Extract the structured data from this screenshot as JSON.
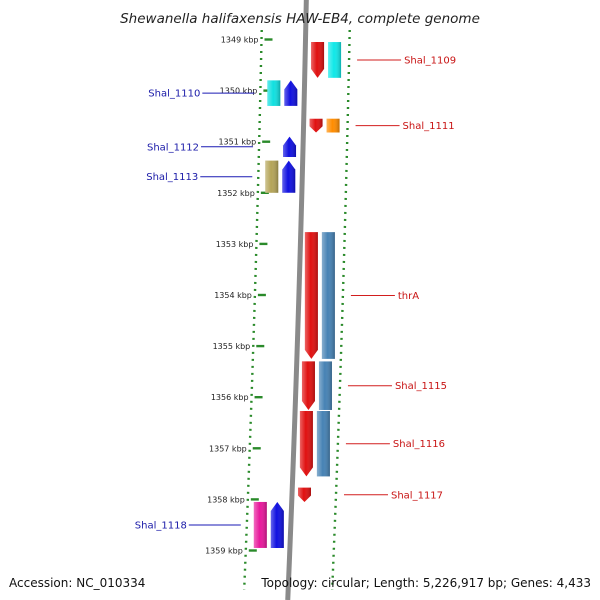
{
  "title": "Shewanella halifaxensis HAW-EB4, complete genome",
  "accession": "Accession: NC_010334",
  "topology": "Topology: circular; Length: 5,226,917 bp; Genes: 4,433",
  "colors": {
    "backbone": "#8a8a8a",
    "ticks": "#2a8a2a",
    "label_forward": "#1a1aa8",
    "label_reverse": "#c81414",
    "leader_forward": "#1a1ab4",
    "leader_reverse": "#d21e1e"
  },
  "ticks": [
    {
      "kbp": 1349,
      "label": "1349 kbp"
    },
    {
      "kbp": 1350,
      "label": "1350 kbp"
    },
    {
      "kbp": 1351,
      "label": "1351 kbp"
    },
    {
      "kbp": 1352,
      "label": "1352 kbp"
    },
    {
      "kbp": 1353,
      "label": "1353 kbp"
    },
    {
      "kbp": 1354,
      "label": "1354 kbp"
    },
    {
      "kbp": 1355,
      "label": "1355 kbp"
    },
    {
      "kbp": 1356,
      "label": "1356 kbp"
    },
    {
      "kbp": 1357,
      "label": "1357 kbp"
    },
    {
      "kbp": 1358,
      "label": "1358 kbp"
    },
    {
      "kbp": 1359,
      "label": "1359 kbp"
    }
  ],
  "genes": [
    {
      "label": "Shal_1109",
      "strand": "reverse",
      "start_kbp": 1349.05,
      "end_kbp": 1349.75,
      "color": "#e01010",
      "rna_color": "#10e8e8"
    },
    {
      "label": "Shal_1110",
      "strand": "forward",
      "start_kbp": 1349.8,
      "end_kbp": 1350.3,
      "color": "#1010e0",
      "rna_color": "#10e0e0"
    },
    {
      "label": "Shal_1111",
      "strand": "reverse",
      "start_kbp": 1350.55,
      "end_kbp": 1350.82,
      "color": "#e01010",
      "rna_color": "#ff8c00"
    },
    {
      "label": "Shal_1112",
      "strand": "forward",
      "start_kbp": 1350.9,
      "end_kbp": 1351.3,
      "color": "#1010e0",
      "rna_color": ""
    },
    {
      "label": "Shal_1113",
      "strand": "forward",
      "start_kbp": 1351.37,
      "end_kbp": 1352.0,
      "color": "#1010e0",
      "rna_color": "#b4a458"
    },
    {
      "label": "thrA",
      "strand": "reverse",
      "start_kbp": 1352.77,
      "end_kbp": 1355.25,
      "color": "#e01010",
      "rna_color": "#4682b4"
    },
    {
      "label": "Shal_1115",
      "strand": "reverse",
      "start_kbp": 1355.3,
      "end_kbp": 1356.25,
      "color": "#e01010",
      "rna_color": "#4682b4"
    },
    {
      "label": "Shal_1116",
      "strand": "reverse",
      "start_kbp": 1356.27,
      "end_kbp": 1357.55,
      "color": "#e01010",
      "rna_color": "#4682b4"
    },
    {
      "label": "Shal_1117",
      "strand": "reverse",
      "start_kbp": 1357.77,
      "end_kbp": 1358.05,
      "color": "#e01010",
      "rna_color": ""
    },
    {
      "label": "Shal_1118",
      "strand": "forward",
      "start_kbp": 1358.05,
      "end_kbp": 1358.95,
      "color": "#1010e0",
      "rna_color": "#e8189c"
    }
  ]
}
